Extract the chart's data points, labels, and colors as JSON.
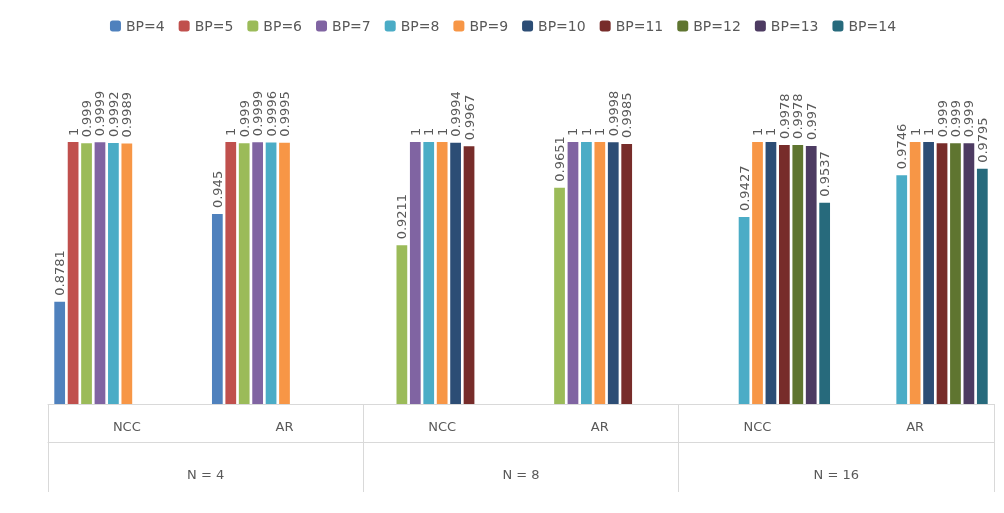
{
  "chart_data": {
    "type": "bar",
    "categories": [
      "NCC",
      "AR",
      "NCC",
      "AR",
      "NCC",
      "AR"
    ],
    "annotations": [
      "N = 4",
      "N = 8",
      "N = 16"
    ],
    "ylim": [
      0.8,
      1
    ],
    "tick_labels": "x",
    "data_labels": true,
    "legend": "top",
    "grid": false,
    "series": [
      {
        "name": "BP=4",
        "color": "#4f81bd",
        "values": [
          0.8781,
          0.945,
          null,
          null,
          null,
          null
        ]
      },
      {
        "name": "BP=5",
        "color": "#c0504d",
        "values": [
          1,
          1,
          null,
          null,
          null,
          null
        ]
      },
      {
        "name": "BP=6",
        "color": "#9bbb59",
        "values": [
          0.999,
          0.999,
          0.9211,
          0.9651,
          null,
          null
        ]
      },
      {
        "name": "BP=7",
        "color": "#8064a2",
        "values": [
          0.9999,
          0.9999,
          1,
          1,
          null,
          null
        ]
      },
      {
        "name": "BP=8",
        "color": "#4bacc6",
        "values": [
          0.9992,
          0.9996,
          1,
          1,
          0.9427,
          0.9746
        ]
      },
      {
        "name": "BP=9",
        "color": "#f79646",
        "values": [
          0.9989,
          0.9995,
          1,
          1,
          1,
          1
        ]
      },
      {
        "name": "BP=10",
        "color": "#2c4d75",
        "values": [
          null,
          null,
          0.9994,
          0.9998,
          1,
          1
        ]
      },
      {
        "name": "BP=11",
        "color": "#772c2a",
        "values": [
          null,
          null,
          0.9967,
          0.9985,
          0.9978,
          0.999
        ]
      },
      {
        "name": "BP=12",
        "color": "#5f7530",
        "values": [
          null,
          null,
          null,
          null,
          0.9978,
          0.999
        ]
      },
      {
        "name": "BP=13",
        "color": "#4d3b62",
        "values": [
          null,
          null,
          null,
          null,
          0.997,
          0.999
        ]
      },
      {
        "name": "BP=14",
        "color": "#276a7c",
        "values": [
          null,
          null,
          null,
          null,
          0.9537,
          0.9795
        ]
      }
    ]
  }
}
